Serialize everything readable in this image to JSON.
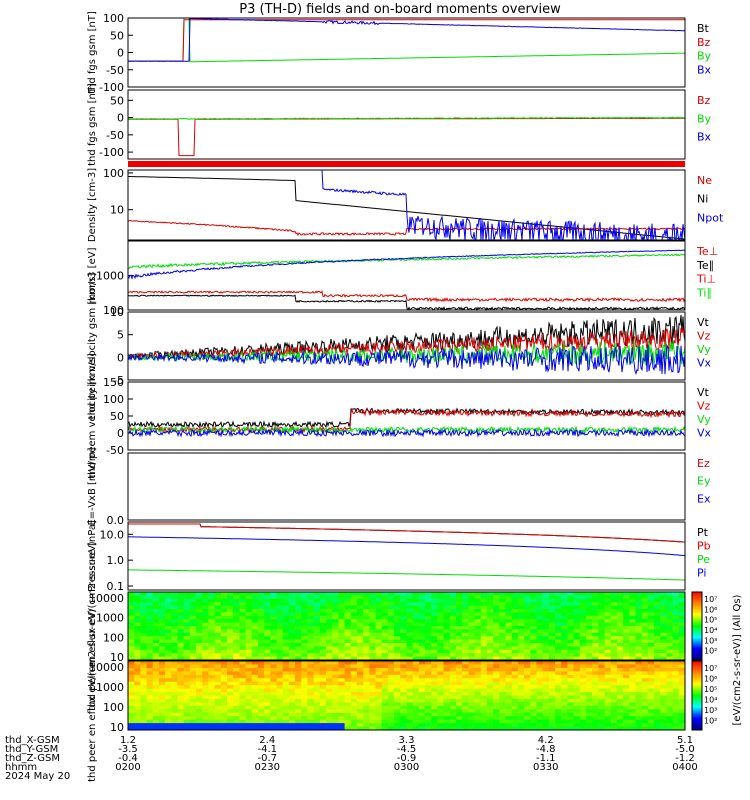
{
  "title": "P3 (TH-D) fields and on-board moments overview",
  "colors": {
    "black": "#000000",
    "red": "#dd0000",
    "green": "#00dd00",
    "blue": "#0000ee"
  },
  "time_axis": {
    "labels": [
      {
        "name": "thd_X-GSM",
        "values": [
          "1.2",
          "2.4",
          "3.3",
          "4.2",
          "5.1"
        ]
      },
      {
        "name": "thd_Y-GSM",
        "values": [
          "-3.5",
          "-4.1",
          "-4.5",
          "-4.8",
          "-5.0"
        ]
      },
      {
        "name": "thd_Z-GSM",
        "values": [
          "-0.4",
          "-0.7",
          "-0.9",
          "-1.1",
          "-1.2"
        ]
      },
      {
        "name": "hhmm",
        "values": [
          "0200",
          "0230",
          "0300",
          "0330",
          "0400"
        ]
      }
    ],
    "date": "2024 May 20"
  },
  "chart_data": [
    {
      "id": "fgs",
      "type": "line",
      "ylabel": "thd fgs gsm [nT]",
      "ylim": [
        -100,
        100
      ],
      "ticks": [
        "100",
        "50",
        "0",
        "-50",
        "-100"
      ],
      "legend": [
        {
          "name": "Bt",
          "color": "black"
        },
        {
          "name": "Bz",
          "color": "red"
        },
        {
          "name": "By",
          "color": "green"
        },
        {
          "name": "Bx",
          "color": "blue"
        }
      ]
    },
    {
      "id": "fgs2",
      "type": "line",
      "ylabel": "thd fgs gsm [nT]",
      "ylim": [
        -120,
        80
      ],
      "ticks": [
        "50",
        "0",
        "-50",
        "-100"
      ],
      "legend": [
        {
          "name": "Bz",
          "color": "red"
        },
        {
          "name": "By",
          "color": "green"
        },
        {
          "name": "Bx",
          "color": "blue"
        }
      ]
    },
    {
      "id": "dens",
      "type": "line",
      "ylabel": "Density [cm-3]",
      "log": true,
      "ylim": [
        1.5,
        120
      ],
      "ticks": [
        "100",
        "10"
      ],
      "legend": [
        {
          "name": "Ne",
          "color": "red"
        },
        {
          "name": "Ni",
          "color": "black"
        },
        {
          "name": "Npot",
          "color": "blue"
        }
      ]
    },
    {
      "id": "temp",
      "type": "line",
      "ylabel": "mom3 [eV]",
      "log": true,
      "ylim": [
        100,
        10000
      ],
      "ticks": [
        "1000",
        "100"
      ],
      "legend": [
        {
          "name": "Te⊥",
          "color": "red"
        },
        {
          "name": "Te∥",
          "color": "black"
        },
        {
          "name": "Ti⊥",
          "color": "red"
        },
        {
          "name": "Ti∥",
          "color": "green"
        }
      ]
    },
    {
      "id": "vi",
      "type": "line",
      "ylabel": "thd peim velocity gsm [km/s]",
      "ylim": [
        -5,
        10
      ],
      "ticks": [
        "10",
        "5",
        "0",
        "-5"
      ],
      "legend": [
        {
          "name": "Vt",
          "color": "black"
        },
        {
          "name": "Vz",
          "color": "red"
        },
        {
          "name": "Vy",
          "color": "green"
        },
        {
          "name": "Vx",
          "color": "blue"
        }
      ]
    },
    {
      "id": "ve",
      "type": "line",
      "ylabel": "thd peem velocity [km/s]",
      "ylim": [
        -50,
        150
      ],
      "ticks": [
        "150",
        "100",
        "50",
        "0",
        "-50"
      ],
      "legend": [
        {
          "name": "Vt",
          "color": "black"
        },
        {
          "name": "Vz",
          "color": "red"
        },
        {
          "name": "Vy",
          "color": "green"
        },
        {
          "name": "Vx",
          "color": "blue"
        }
      ]
    },
    {
      "id": "efield",
      "type": "line",
      "ylabel": "E=-VxB [mV/m]",
      "ylim": [
        0,
        1
      ],
      "ticks": [
        "0.0"
      ],
      "legend": [
        {
          "name": "Ez",
          "color": "red"
        },
        {
          "name": "Ey",
          "color": "green"
        },
        {
          "name": "Ex",
          "color": "blue"
        }
      ]
    },
    {
      "id": "press",
      "type": "line",
      "ylabel": "Pressure [nPa]",
      "log": true,
      "ylim": [
        0.07,
        30
      ],
      "ticks": [
        "10.0",
        "1.0",
        "0.1"
      ],
      "legend": [
        {
          "name": "Pt",
          "color": "black"
        },
        {
          "name": "Pb",
          "color": "red"
        },
        {
          "name": "Pe",
          "color": "green"
        },
        {
          "name": "Pi",
          "color": "blue"
        }
      ]
    },
    {
      "id": "ispec",
      "type": "heatmap",
      "ylabel": "thd peir en eflux eV/(cm2-s-sr-eV)",
      "log": true,
      "ylim": [
        7,
        20000
      ],
      "ticks": [
        "10000",
        "1000",
        "100",
        "10"
      ]
    },
    {
      "id": "espec",
      "type": "heatmap",
      "ylabel": "thd peer en eflux eV/(cm2-s-sr-eV)",
      "log": true,
      "ylim": [
        7,
        20000
      ],
      "ticks": [
        "10000",
        "1000",
        "100",
        "10"
      ]
    }
  ],
  "colorbar": {
    "ticks": [
      "10⁷",
      "10⁶",
      "10⁵",
      "10⁴",
      "10³",
      "10²"
    ],
    "label": "[eV/(cm2-s-sr-eV)] (All Qs)"
  }
}
